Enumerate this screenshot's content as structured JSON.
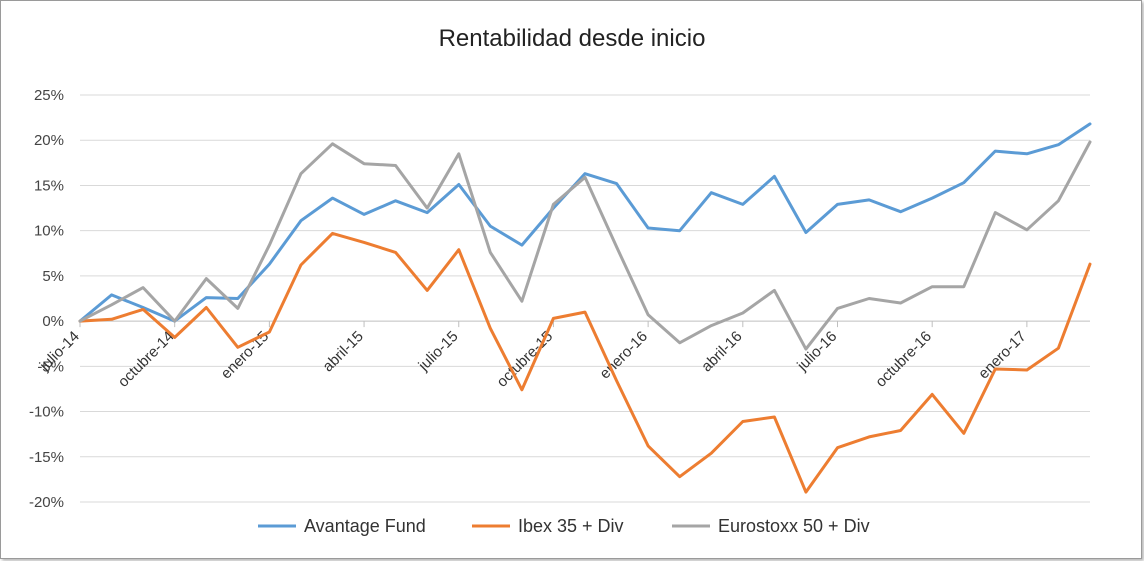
{
  "chart_data": {
    "type": "line",
    "title": "Rentabilidad desde inicio",
    "xlabel": "",
    "ylabel": "",
    "ylim": [
      -0.2,
      0.25
    ],
    "yticks": [
      0.25,
      0.2,
      0.15,
      0.1,
      0.05,
      0.0,
      -0.05,
      -0.1,
      -0.15,
      -0.2
    ],
    "ytick_labels": [
      "25%",
      "20%",
      "15%",
      "10%",
      "5%",
      "0%",
      "-5%",
      "-10%",
      "-15%",
      "-20%"
    ],
    "x_labels": [
      {
        "index": 0,
        "label": "julio-14"
      },
      {
        "index": 3,
        "label": "octubre-14"
      },
      {
        "index": 6,
        "label": "enero-15"
      },
      {
        "index": 9,
        "label": "abril-15"
      },
      {
        "index": 12,
        "label": "julio-15"
      },
      {
        "index": 15,
        "label": "octubre-15"
      },
      {
        "index": 18,
        "label": "enero-16"
      },
      {
        "index": 21,
        "label": "abril-16"
      },
      {
        "index": 24,
        "label": "julio-16"
      },
      {
        "index": 27,
        "label": "octubre-16"
      },
      {
        "index": 30,
        "label": "enero-17"
      }
    ],
    "series": [
      {
        "name": "Avantage Fund",
        "color": "#5b9bd5",
        "values": [
          0.0,
          0.029,
          0.015,
          0.0,
          0.026,
          0.025,
          0.063,
          0.111,
          0.136,
          0.118,
          0.133,
          0.12,
          0.151,
          0.105,
          0.084,
          0.125,
          0.163,
          0.152,
          0.103,
          0.1,
          0.142,
          0.129,
          0.16,
          0.098,
          0.129,
          0.134,
          0.121,
          0.136,
          0.153,
          0.188,
          0.185,
          0.195,
          0.218
        ]
      },
      {
        "name": "Ibex 35 + Div",
        "color": "#ed7d31",
        "values": [
          0.0,
          0.002,
          0.013,
          -0.018,
          0.015,
          -0.029,
          -0.012,
          0.062,
          0.097,
          0.087,
          0.076,
          0.034,
          0.079,
          -0.008,
          -0.076,
          0.003,
          0.01,
          -0.066,
          -0.138,
          -0.172,
          -0.146,
          -0.111,
          -0.106,
          -0.189,
          -0.14,
          -0.128,
          -0.121,
          -0.081,
          -0.124,
          -0.053,
          -0.054,
          -0.03,
          0.063
        ]
      },
      {
        "name": "Eurostoxx 50 + Div",
        "color": "#a5a5a5",
        "values": [
          0.0,
          0.018,
          0.037,
          0.0,
          0.047,
          0.014,
          0.084,
          0.163,
          0.196,
          0.174,
          0.172,
          0.125,
          0.185,
          0.076,
          0.022,
          0.129,
          0.159,
          0.082,
          0.007,
          -0.024,
          -0.005,
          0.009,
          0.034,
          -0.031,
          0.014,
          0.025,
          0.02,
          0.038,
          0.038,
          0.12,
          0.101,
          0.133,
          0.198
        ]
      }
    ],
    "grid": true,
    "legend": "bottom"
  }
}
